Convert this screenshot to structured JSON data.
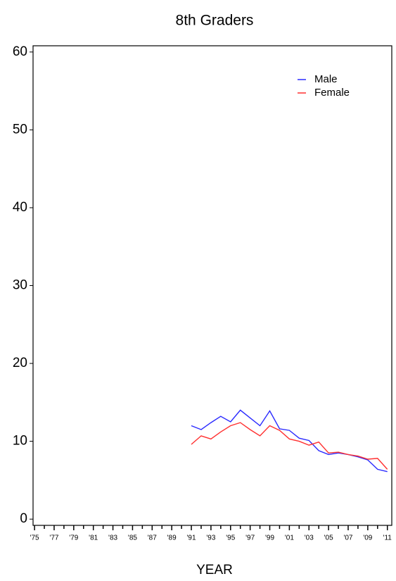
{
  "chart_data": {
    "type": "line",
    "title": "8th Graders",
    "x_label": "YEAR",
    "x": [
      1991,
      1992,
      1993,
      1994,
      1995,
      1996,
      1997,
      1998,
      1999,
      2000,
      2001,
      2002,
      2003,
      2004,
      2005,
      2006,
      2007,
      2008,
      2009,
      2010,
      2011
    ],
    "series": [
      {
        "name": "Male",
        "color": "#2a2aff",
        "values": [
          12.0,
          11.5,
          12.4,
          13.2,
          12.5,
          14.0,
          13.0,
          12.0,
          13.9,
          11.6,
          11.4,
          10.4,
          10.1,
          8.8,
          8.3,
          8.5,
          8.3,
          8.0,
          7.6,
          6.4,
          6.1
        ]
      },
      {
        "name": "Female",
        "color": "#ff3030",
        "values": [
          9.6,
          10.7,
          10.3,
          11.2,
          12.0,
          12.4,
          11.5,
          10.7,
          12.0,
          11.4,
          10.3,
          10.0,
          9.5,
          9.9,
          8.5,
          8.6,
          8.3,
          8.1,
          7.7,
          7.8,
          6.4
        ]
      }
    ],
    "xlim": [
      1974.85,
      2011.45
    ],
    "ylim": [
      -0.8,
      60.8
    ],
    "yticks": [
      0,
      10,
      20,
      30,
      40,
      50,
      60
    ],
    "xticks": [
      {
        "value": 1975,
        "label": "'75"
      },
      {
        "value": 1977,
        "label": "'77"
      },
      {
        "value": 1979,
        "label": "'79"
      },
      {
        "value": 1981,
        "label": "'81"
      },
      {
        "value": 1983,
        "label": "'83"
      },
      {
        "value": 1985,
        "label": "'85"
      },
      {
        "value": 1987,
        "label": "'87"
      },
      {
        "value": 1989,
        "label": "'89"
      },
      {
        "value": 1991,
        "label": "'91"
      },
      {
        "value": 1993,
        "label": "'93"
      },
      {
        "value": 1995,
        "label": "'95"
      },
      {
        "value": 1997,
        "label": "'97"
      },
      {
        "value": 1999,
        "label": "'99"
      },
      {
        "value": 2001,
        "label": "'01"
      },
      {
        "value": 2003,
        "label": "'03"
      },
      {
        "value": 2005,
        "label": "'05"
      },
      {
        "value": 2007,
        "label": "'07"
      },
      {
        "value": 2009,
        "label": "'09"
      },
      {
        "value": 2011,
        "label": "'11"
      }
    ],
    "xminor_ticks": [
      1976,
      1978,
      1980,
      1982,
      1984,
      1986,
      1988,
      1990,
      1992,
      1994,
      1996,
      1998,
      2000,
      2002,
      2004,
      2006,
      2008,
      2010
    ],
    "legend": "upper right",
    "grid": false
  }
}
